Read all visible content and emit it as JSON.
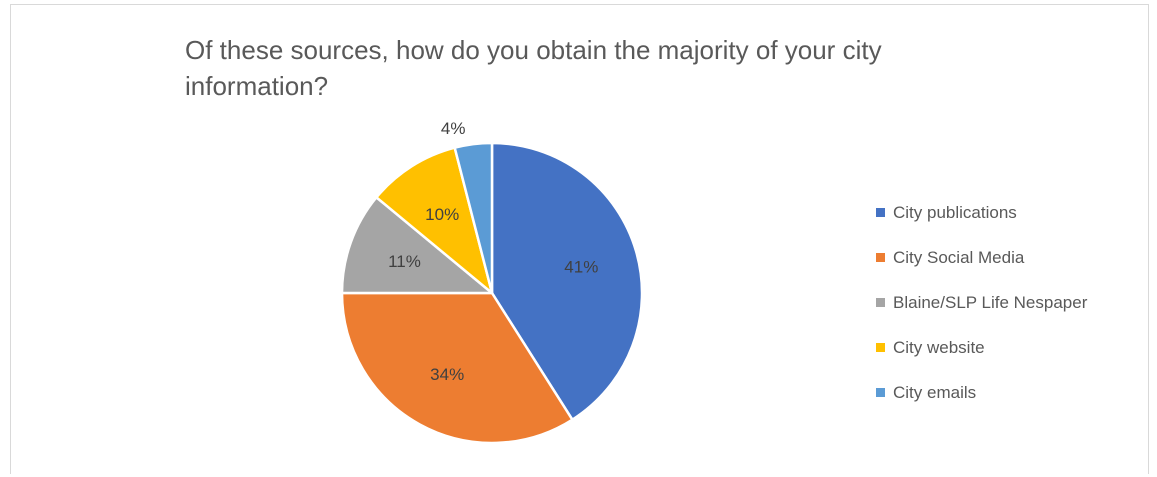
{
  "chart_data": {
    "type": "pie",
    "title": "Of these sources, how do you obtain the majority of your city information?",
    "slices": [
      {
        "label": "City publications",
        "value": 41,
        "display": "41%",
        "color": "#4472c4"
      },
      {
        "label": "City Social Media",
        "value": 34,
        "display": "34%",
        "color": "#ed7d31"
      },
      {
        "label": "Blaine/SLP Life Nespaper",
        "value": 11,
        "display": "11%",
        "color": "#a5a5a5"
      },
      {
        "label": "City website",
        "value": 10,
        "display": "10%",
        "color": "#ffc000"
      },
      {
        "label": "City emails",
        "value": 4,
        "display": "4%",
        "color": "#5b9bd5"
      }
    ],
    "legend_position": "right",
    "start_angle": "top",
    "direction": "clockwise"
  }
}
